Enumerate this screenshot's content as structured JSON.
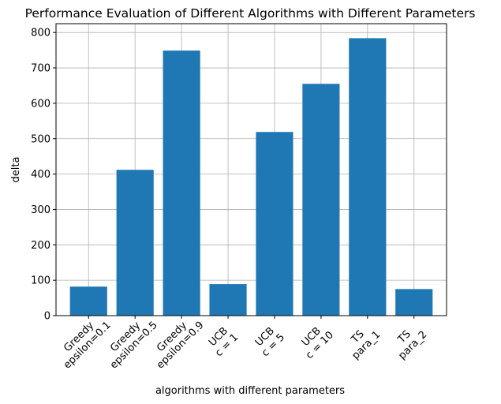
{
  "chart_data": {
    "type": "bar",
    "title": "Performance Evaluation of Different Algorithms with Different Parameters",
    "xlabel": "algorithms with different parameters",
    "ylabel": "delta",
    "categories": [
      [
        "Greedy",
        "epsilon=0.1"
      ],
      [
        "Greedy",
        "epsilon=0.5"
      ],
      [
        "Greedy",
        "epsilon=0.9"
      ],
      [
        "UCB",
        "c = 1"
      ],
      [
        "UCB",
        "c = 5"
      ],
      [
        "UCB",
        "c = 10"
      ],
      [
        "TS",
        "para_1"
      ],
      [
        "TS",
        "para_2"
      ]
    ],
    "values": [
      82,
      412,
      749,
      89,
      519,
      655,
      784,
      75
    ],
    "ylim": [
      0,
      825
    ],
    "yticks": [
      0,
      100,
      200,
      300,
      400,
      500,
      600,
      700,
      800
    ],
    "grid": true,
    "bar_color": "#1f77b4",
    "grid_color": "#b0b0b0"
  }
}
